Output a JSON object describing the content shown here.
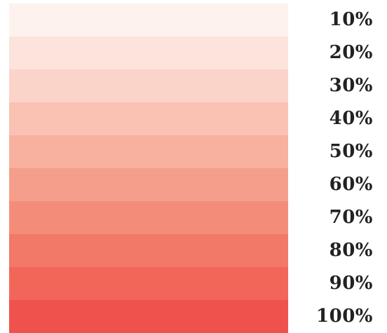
{
  "swatches": [
    {
      "label": "10%",
      "color": "#fdf2ee"
    },
    {
      "label": "20%",
      "color": "#fce4dc"
    },
    {
      "label": "30%",
      "color": "#fbd4c9"
    },
    {
      "label": "40%",
      "color": "#fac2b3"
    },
    {
      "label": "50%",
      "color": "#f8b09f"
    },
    {
      "label": "60%",
      "color": "#f59e8c"
    },
    {
      "label": "70%",
      "color": "#f48c7a"
    },
    {
      "label": "80%",
      "color": "#f27868"
    },
    {
      "label": "90%",
      "color": "#f16659"
    },
    {
      "label": "100%",
      "color": "#ef524d"
    }
  ]
}
